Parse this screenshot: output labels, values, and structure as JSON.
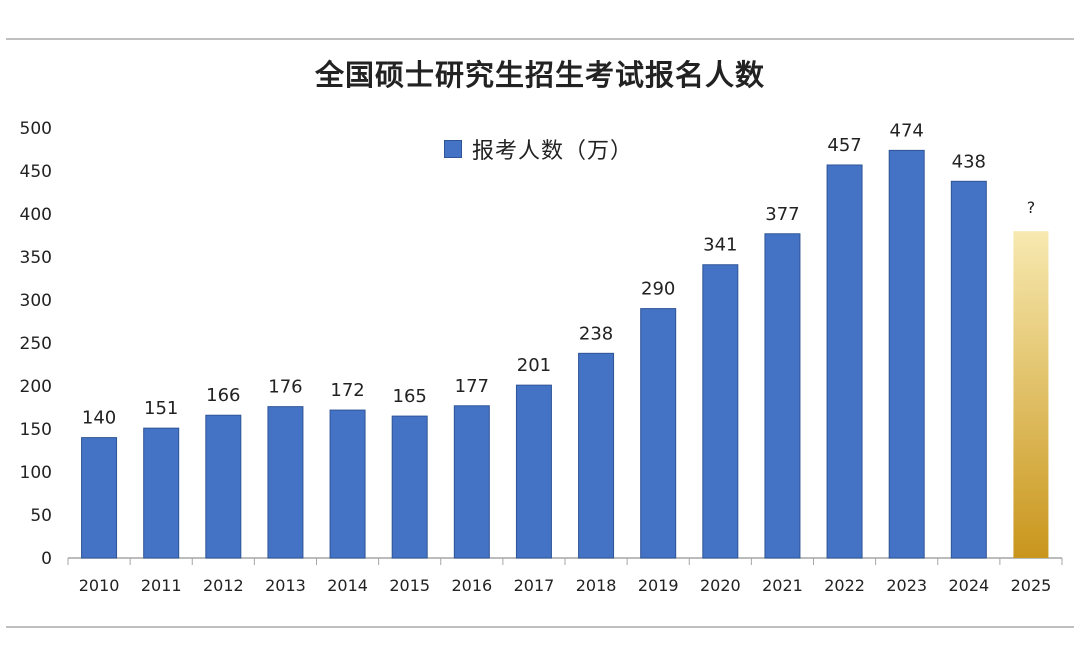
{
  "chart_data": {
    "type": "bar",
    "title": "全国硕士研究生招生考试报名人数",
    "legend": "报考人数（万）",
    "categories": [
      "2010",
      "2011",
      "2012",
      "2013",
      "2014",
      "2015",
      "2016",
      "2017",
      "2018",
      "2019",
      "2020",
      "2021",
      "2022",
      "2023",
      "2024",
      "2025"
    ],
    "values": [
      140,
      151,
      166,
      176,
      172,
      165,
      177,
      201,
      238,
      290,
      341,
      377,
      457,
      474,
      438,
      null
    ],
    "data_labels": [
      "140",
      "151",
      "166",
      "176",
      "172",
      "165",
      "177",
      "201",
      "238",
      "290",
      "341",
      "377",
      "457",
      "474",
      "438",
      "?"
    ],
    "placeholder_value": 380,
    "yticks": [
      "0",
      "50",
      "100",
      "150",
      "200",
      "250",
      "300",
      "350",
      "400",
      "450",
      "500"
    ],
    "ylim": [
      0,
      500
    ],
    "colors": {
      "bar": "#4472C4",
      "bar_border": "#2F5597",
      "unknown_top": "#F7E9B0",
      "unknown_bottom": "#C9961C"
    }
  }
}
